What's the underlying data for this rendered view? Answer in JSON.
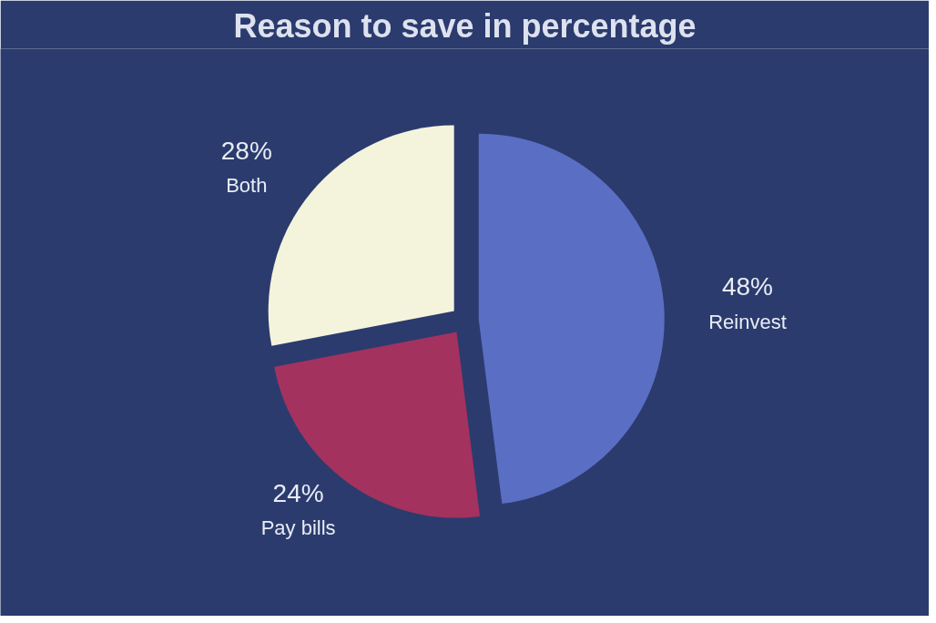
{
  "chart_data": {
    "type": "pie",
    "title": "Reason to save in percentage",
    "categories": [
      "Reinvest",
      "Pay bills",
      "Both"
    ],
    "values": [
      48,
      24,
      28
    ],
    "colors": [
      "#5a6ec4",
      "#a3325f",
      "#f4f4dc"
    ],
    "value_labels": [
      "48%",
      "24%",
      "28%"
    ]
  }
}
